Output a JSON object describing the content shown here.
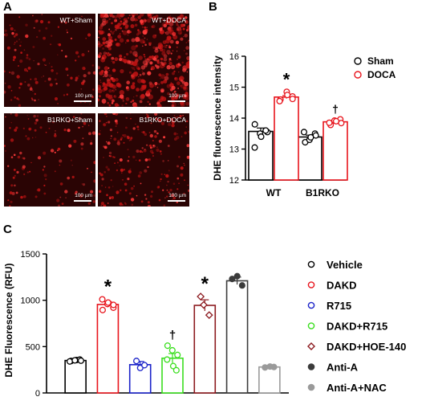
{
  "panel_labels": {
    "a": "A",
    "b": "B",
    "c": "C"
  },
  "micrographs": [
    {
      "label": "WT+Sham",
      "scale": "100 µm"
    },
    {
      "label": "WT+DOCA",
      "scale": "100 µm"
    },
    {
      "label": "B1RKO+Sham",
      "scale": "100 µm"
    },
    {
      "label": "B1RKO+DOCA",
      "scale": "100 µm"
    }
  ],
  "chart_data": [
    {
      "type": "bar",
      "ylabel": "DHE fluorescence intensity",
      "ylim": [
        12,
        16
      ],
      "yticks": [
        12,
        13,
        14,
        15,
        16
      ],
      "categories": [
        "WT",
        "B1RKO"
      ],
      "series": [
        {
          "name": "Sham",
          "color": "#000000",
          "values": [
            13.57,
            13.39
          ],
          "sem": [
            0.11,
            0.06
          ],
          "points": [
            [
              13.05,
              13.5,
              13.55,
              13.8,
              13.4,
              13.6
            ],
            [
              13.22,
              13.3,
              13.5,
              13.55,
              13.38,
              13.44
            ]
          ]
        },
        {
          "name": "DOCA",
          "color": "#e8141c",
          "values": [
            14.68,
            13.88
          ],
          "sem": [
            0.05,
            0.04
          ],
          "points": [
            [
              14.6,
              14.85,
              14.7,
              14.55,
              14.75,
              14.62
            ],
            [
              13.78,
              13.92,
              13.96,
              13.85,
              13.9,
              13.84
            ]
          ]
        }
      ],
      "annotations": [
        {
          "text": "*",
          "category": "WT",
          "series": "DOCA"
        },
        {
          "text": "†",
          "category": "B1RKO",
          "series": "DOCA"
        }
      ],
      "legend_position": "top-right"
    },
    {
      "type": "bar",
      "ylabel": "DHE Fluorescence (RFU)",
      "ylim": [
        0,
        1500
      ],
      "yticks": [
        0,
        500,
        1000,
        1500
      ],
      "groups": [
        {
          "name": "Vehicle",
          "color": "#000000",
          "fill": "none",
          "marker": "circle",
          "value": 350,
          "sem": 10,
          "points": [
            345,
            355,
            360,
            340,
            352,
            348
          ]
        },
        {
          "name": "DAKD",
          "color": "#e8141c",
          "fill": "none",
          "marker": "circle",
          "value": 955,
          "sem": 30,
          "points": [
            1010,
            960,
            920,
            895,
            975,
            950
          ]
        },
        {
          "name": "R715",
          "color": "#1b23c9",
          "fill": "none",
          "marker": "circle",
          "value": 305,
          "sem": 35,
          "points": [
            345,
            270,
            300
          ]
        },
        {
          "name": "DAKD+R715",
          "color": "#3ade1e",
          "fill": "none",
          "marker": "circle",
          "value": 375,
          "sem": 50,
          "points": [
            510,
            460,
            410,
            360,
            290,
            245
          ]
        },
        {
          "name": "DAKD+HOE-140",
          "color": "#8c1a1f",
          "fill": "none",
          "marker": "diamond",
          "value": 945,
          "sem": 60,
          "points": [
            1040,
            950,
            840
          ]
        },
        {
          "name": "Anti-A",
          "color": "#3b3b3b",
          "fill": "filled",
          "marker": "circle",
          "value": 1210,
          "sem": 40,
          "points": [
            1230,
            1260,
            1160
          ]
        },
        {
          "name": "Anti-A+NAC",
          "color": "#9a9a9a",
          "fill": "filled",
          "marker": "circle",
          "value": 280,
          "sem": 5,
          "points": [
            275,
            285,
            280
          ]
        }
      ],
      "annotations": [
        {
          "text": "*",
          "group": "DAKD"
        },
        {
          "text": "†",
          "group": "DAKD+R715"
        },
        {
          "text": "*",
          "group": "DAKD+HOE-140"
        }
      ],
      "legend_position": "right"
    }
  ]
}
